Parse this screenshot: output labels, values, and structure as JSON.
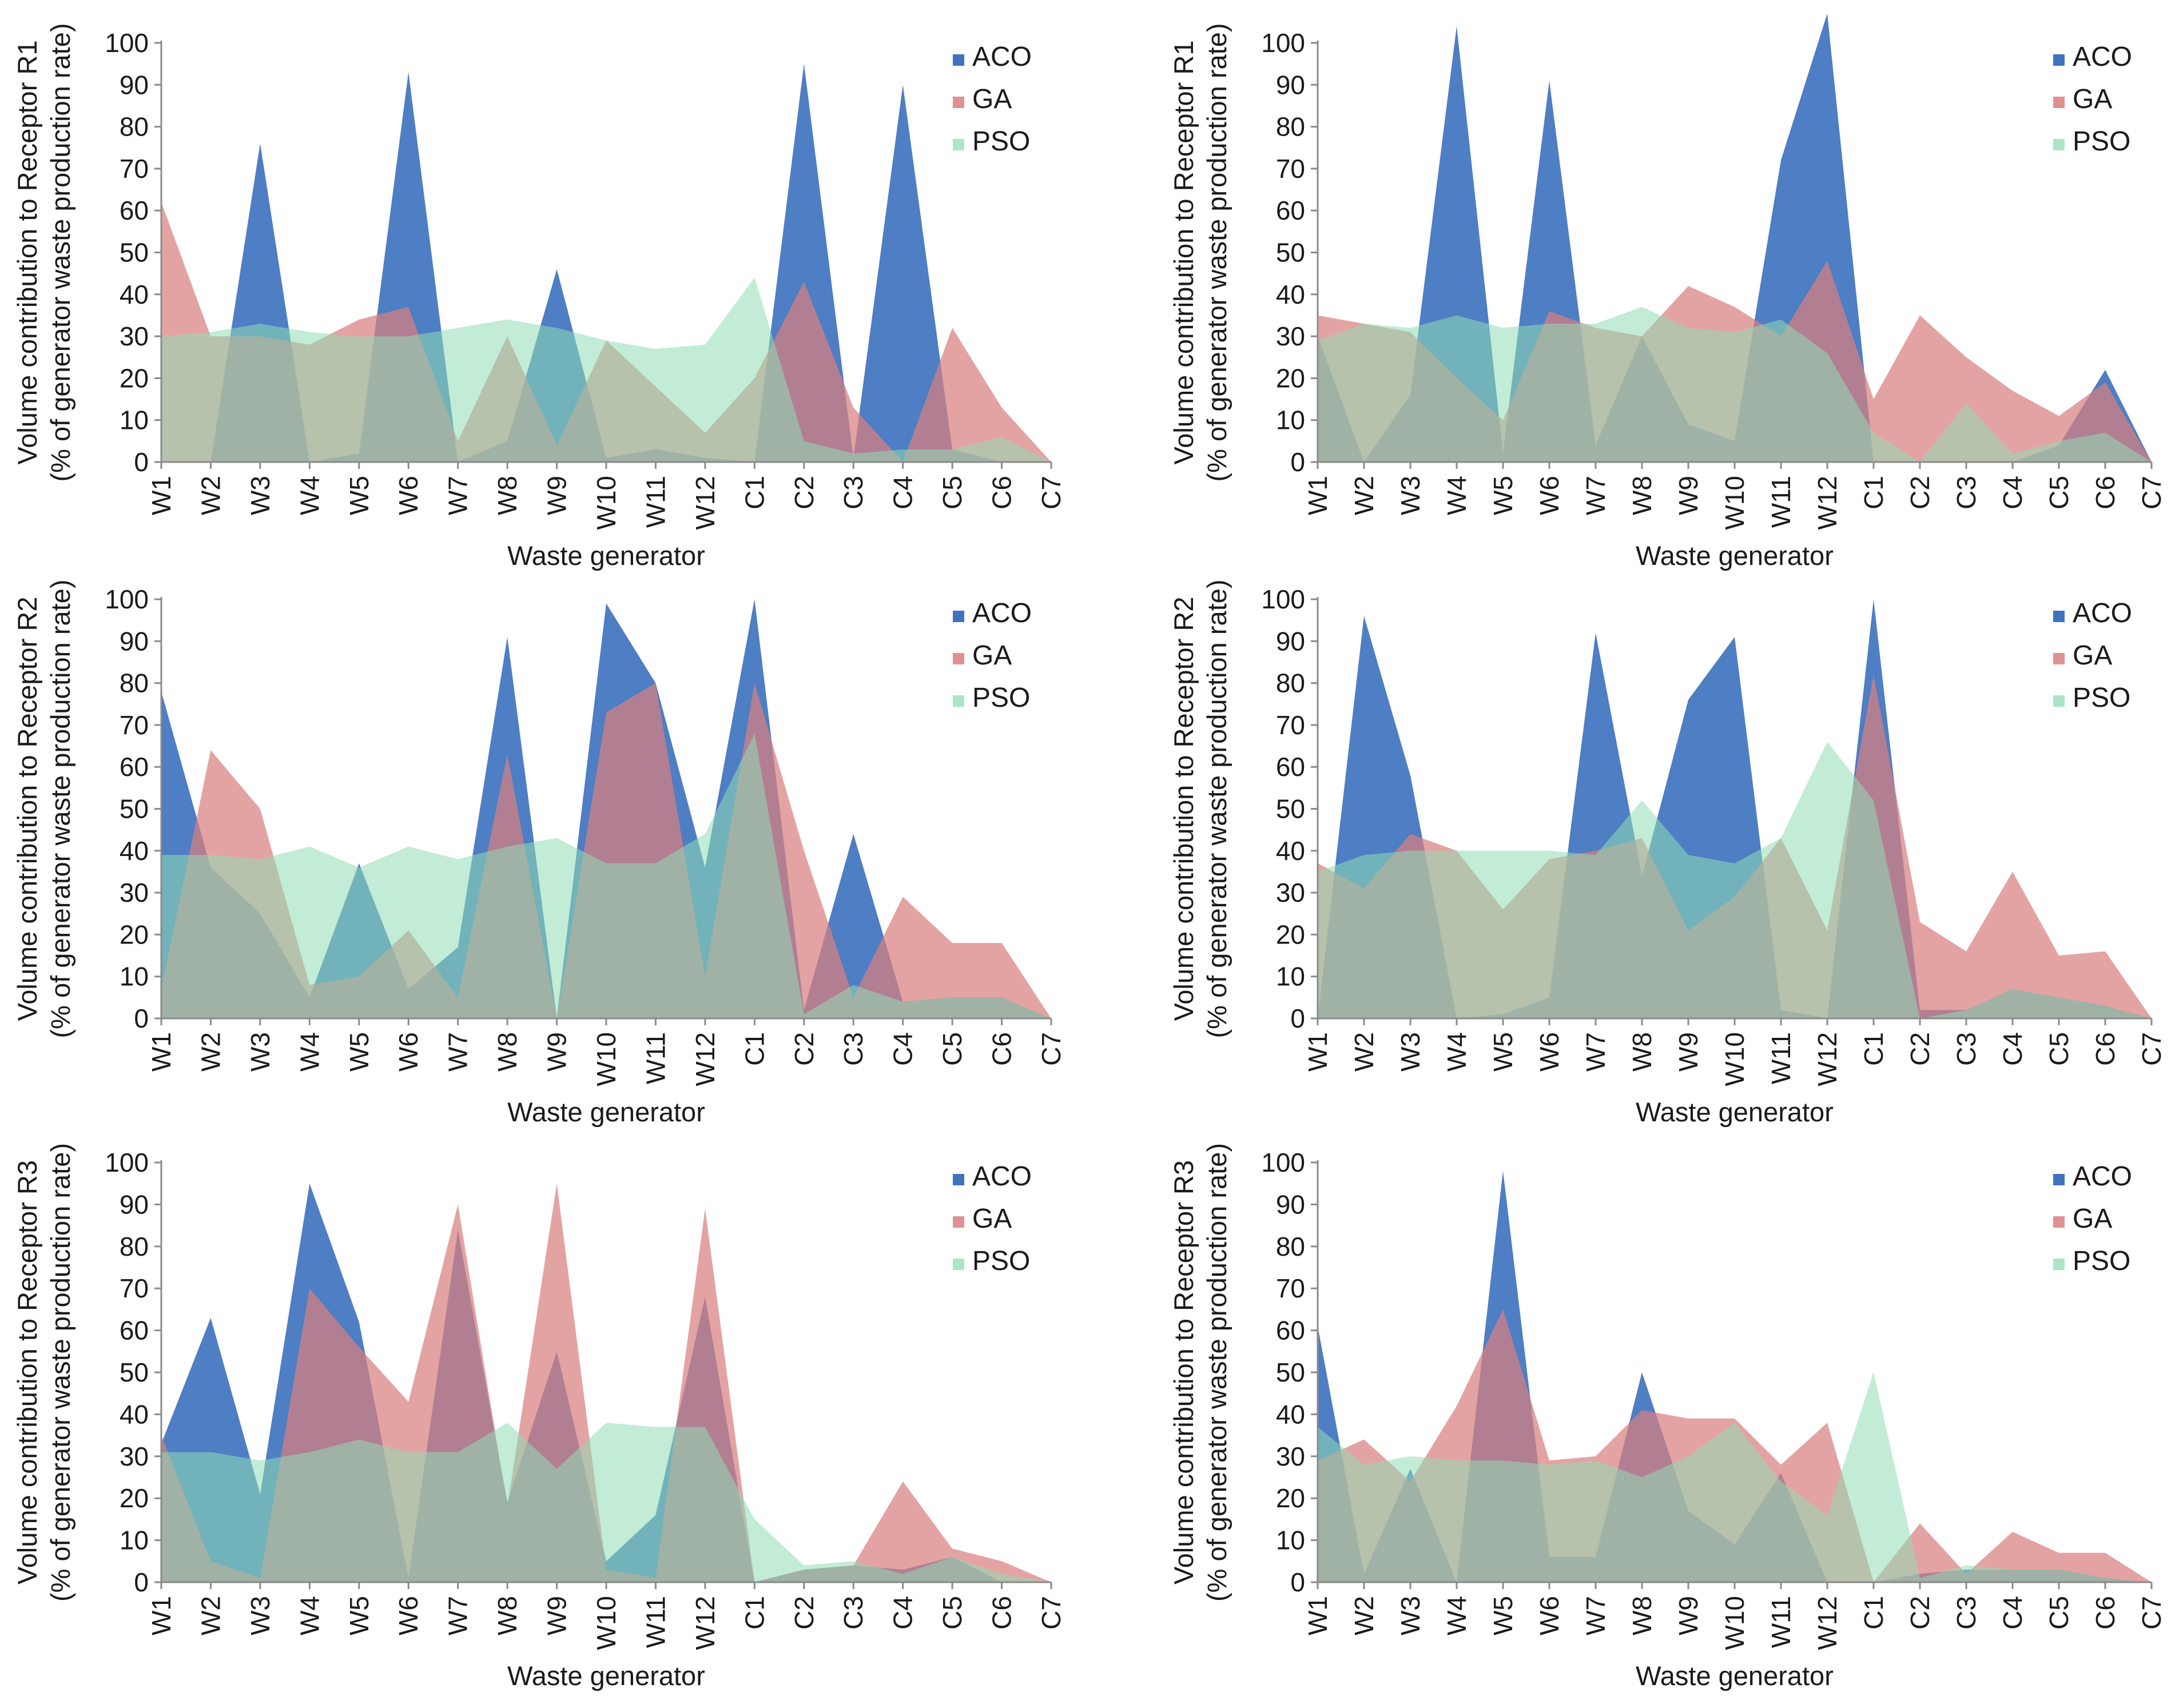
{
  "figure": {
    "colors": {
      "ACO": "#3f73be",
      "GA": "#d97f7f",
      "PSO": "#8fdcb4",
      "axis": "#8a8a8a",
      "text": "#1a1a1a"
    }
  },
  "chart_data": [
    {
      "type": "area",
      "position": "top-left",
      "title": "",
      "xlabel": "Waste generator",
      "ylabel_line1": "Volume contribution to Receptor R1",
      "ylabel_line2": "(% of generator  waste production rate)",
      "ylim": [
        0,
        100
      ],
      "yticks": [
        "0",
        "10",
        "20",
        "30",
        "40",
        "50",
        "60",
        "70",
        "80",
        "90",
        "100"
      ],
      "categories": [
        "W1",
        "W2",
        "W3",
        "W4",
        "W5",
        "W6",
        "W7",
        "W8",
        "W9",
        "W10",
        "W11",
        "W12",
        "C1",
        "C2",
        "C3",
        "C4",
        "C5",
        "C6",
        "C7"
      ],
      "legend": [
        "ACO",
        "GA",
        "PSO"
      ],
      "series": [
        {
          "name": "ACO",
          "values": [
            0,
            0,
            76,
            0,
            2,
            93,
            0,
            5,
            46,
            1,
            3,
            1,
            0,
            95,
            1,
            90,
            3,
            0,
            0
          ]
        },
        {
          "name": "GA",
          "values": [
            62,
            30,
            30,
            28,
            34,
            37,
            5,
            30,
            4,
            29,
            18,
            7,
            20,
            43,
            13,
            0,
            32,
            13,
            0
          ]
        },
        {
          "name": "PSO",
          "values": [
            30,
            31,
            33,
            31,
            30,
            30,
            32,
            34,
            32,
            29,
            27,
            28,
            44,
            5,
            2,
            3,
            3,
            6,
            0
          ]
        }
      ]
    },
    {
      "type": "area",
      "position": "top-right",
      "title": "",
      "xlabel": "Waste generator",
      "ylabel_line1": "Volume contribution to Receptor R1",
      "ylabel_line2": "(% of generator  waste production rate)",
      "ylim": [
        0,
        100
      ],
      "yticks": [
        "0",
        "10",
        "20",
        "30",
        "40",
        "50",
        "60",
        "70",
        "80",
        "90",
        "100"
      ],
      "categories": [
        "W1",
        "W2",
        "W3",
        "W4",
        "W5",
        "W6",
        "W7",
        "W8",
        "W9",
        "W10",
        "W11",
        "W12",
        "C1",
        "C2",
        "C3",
        "C4",
        "C5",
        "C6",
        "C7"
      ],
      "legend": [
        "ACO",
        "GA",
        "PSO"
      ],
      "series": [
        {
          "name": "ACO",
          "values": [
            30,
            0,
            16,
            104,
            2,
            91,
            4,
            30,
            9,
            5,
            72,
            107,
            0,
            0,
            0,
            0,
            4,
            22,
            0
          ]
        },
        {
          "name": "GA",
          "values": [
            35,
            33,
            31,
            20,
            10,
            36,
            32,
            30,
            42,
            37,
            30,
            48,
            15,
            35,
            25,
            17,
            11,
            19,
            0
          ]
        },
        {
          "name": "PSO",
          "values": [
            29,
            33,
            32,
            35,
            32,
            33,
            33,
            37,
            32,
            31,
            34,
            26,
            7,
            0,
            14,
            2,
            5,
            7,
            0
          ]
        }
      ]
    },
    {
      "type": "area",
      "position": "middle-left",
      "title": "",
      "xlabel": "Waste generator",
      "ylabel_line1": "Volume contribution to Receptor R2",
      "ylabel_line2": "(% of generator  waste production rate)",
      "ylim": [
        0,
        100
      ],
      "yticks": [
        "0",
        "10",
        "20",
        "30",
        "40",
        "50",
        "60",
        "70",
        "80",
        "90",
        "100"
      ],
      "categories": [
        "W1",
        "W2",
        "W3",
        "W4",
        "W5",
        "W6",
        "W7",
        "W8",
        "W9",
        "W10",
        "W11",
        "W12",
        "C1",
        "C2",
        "C3",
        "C4",
        "C5",
        "C6",
        "C7"
      ],
      "legend": [
        "ACO",
        "GA",
        "PSO"
      ],
      "series": [
        {
          "name": "ACO",
          "values": [
            78,
            36,
            25,
            5,
            37,
            7,
            17,
            91,
            0,
            99,
            80,
            36,
            100,
            2,
            44,
            4,
            5,
            5,
            0
          ]
        },
        {
          "name": "GA",
          "values": [
            7,
            64,
            50,
            8,
            10,
            21,
            5,
            63,
            0,
            73,
            80,
            10,
            80,
            40,
            5,
            29,
            18,
            18,
            0
          ]
        },
        {
          "name": "PSO",
          "values": [
            39,
            39,
            38,
            41,
            36,
            41,
            38,
            41,
            43,
            37,
            37,
            44,
            68,
            1,
            8,
            4,
            5,
            5,
            0
          ]
        }
      ]
    },
    {
      "type": "area",
      "position": "middle-right",
      "title": "",
      "xlabel": "Waste generator",
      "ylabel_line1": "Volume contribution to Receptor R2",
      "ylabel_line2": "(% of generator  waste production rate)",
      "ylim": [
        0,
        100
      ],
      "yticks": [
        "0",
        "10",
        "20",
        "30",
        "40",
        "50",
        "60",
        "70",
        "80",
        "90",
        "100"
      ],
      "categories": [
        "W1",
        "W2",
        "W3",
        "W4",
        "W5",
        "W6",
        "W7",
        "W8",
        "W9",
        "W10",
        "W11",
        "W12",
        "C1",
        "C2",
        "C3",
        "C4",
        "C5",
        "C6",
        "C7"
      ],
      "legend": [
        "ACO",
        "GA",
        "PSO"
      ],
      "series": [
        {
          "name": "ACO",
          "values": [
            0,
            96,
            58,
            0,
            1,
            5,
            92,
            34,
            76,
            91,
            2,
            0,
            100,
            2,
            2,
            7,
            5,
            3,
            0
          ]
        },
        {
          "name": "GA",
          "values": [
            37,
            31,
            44,
            40,
            26,
            38,
            40,
            43,
            21,
            29,
            43,
            21,
            82,
            23,
            16,
            35,
            15,
            16,
            0
          ]
        },
        {
          "name": "PSO",
          "values": [
            35,
            39,
            40,
            40,
            40,
            40,
            39,
            52,
            39,
            37,
            43,
            66,
            52,
            0,
            2,
            7,
            5,
            3,
            0
          ]
        }
      ]
    },
    {
      "type": "area",
      "position": "bottom-left",
      "title": "",
      "xlabel": "Waste generator",
      "ylabel_line1": "Volume contribution to Receptor R3",
      "ylabel_line2": "(% of generator  waste production rate)",
      "ylim": [
        0,
        100
      ],
      "yticks": [
        "0",
        "10",
        "20",
        "30",
        "40",
        "50",
        "60",
        "70",
        "80",
        "90",
        "100"
      ],
      "categories": [
        "W1",
        "W2",
        "W3",
        "W4",
        "W5",
        "W6",
        "W7",
        "W8",
        "W9",
        "W10",
        "W11",
        "W12",
        "C1",
        "C2",
        "C3",
        "C4",
        "C5",
        "C6",
        "C7"
      ],
      "legend": [
        "ACO",
        "GA",
        "PSO"
      ],
      "series": [
        {
          "name": "ACO",
          "values": [
            33,
            63,
            21,
            95,
            62,
            1,
            84,
            19,
            55,
            5,
            16,
            68,
            0,
            3,
            4,
            3,
            6,
            0,
            0
          ]
        },
        {
          "name": "GA",
          "values": [
            35,
            5,
            1,
            70,
            56,
            43,
            90,
            18,
            95,
            3,
            1,
            89,
            0,
            3,
            4,
            24,
            8,
            5,
            0
          ]
        },
        {
          "name": "PSO",
          "values": [
            31,
            31,
            29,
            31,
            34,
            31,
            31,
            38,
            27,
            38,
            37,
            37,
            15,
            4,
            5,
            2,
            6,
            2,
            0
          ]
        }
      ]
    },
    {
      "type": "area",
      "position": "bottom-right",
      "title": "",
      "xlabel": "Waste generator",
      "ylabel_line1": "Volume contribution to Receptor R3",
      "ylabel_line2": "(% of generator  waste production rate)",
      "ylim": [
        0,
        100
      ],
      "yticks": [
        "0",
        "10",
        "20",
        "30",
        "40",
        "50",
        "60",
        "70",
        "80",
        "90",
        "100"
      ],
      "categories": [
        "W1",
        "W2",
        "W3",
        "W4",
        "W5",
        "W6",
        "W7",
        "W8",
        "W9",
        "W10",
        "W11",
        "W12",
        "C1",
        "C2",
        "C3",
        "C4",
        "C5",
        "C6",
        "C7"
      ],
      "legend": [
        "ACO",
        "GA",
        "PSO"
      ],
      "series": [
        {
          "name": "ACO",
          "values": [
            61,
            2,
            27,
            0,
            98,
            6,
            6,
            50,
            17,
            9,
            26,
            0,
            0,
            2,
            3,
            3,
            3,
            1,
            0
          ]
        },
        {
          "name": "GA",
          "values": [
            29,
            34,
            24,
            42,
            65,
            29,
            30,
            41,
            39,
            39,
            28,
            38,
            0,
            14,
            2,
            12,
            7,
            7,
            0
          ]
        },
        {
          "name": "PSO",
          "values": [
            37,
            28,
            30,
            29,
            29,
            28,
            29,
            25,
            30,
            38,
            24,
            16,
            50,
            1,
            4,
            3,
            3,
            1,
            0
          ]
        }
      ]
    }
  ]
}
